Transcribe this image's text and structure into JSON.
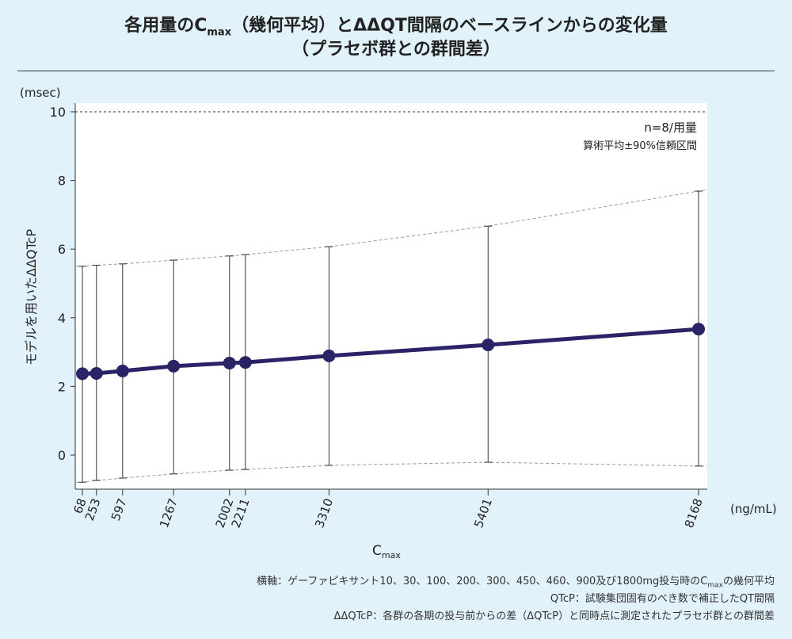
{
  "title": {
    "line1_pre": "各用量のC",
    "line1_sub": "max",
    "line1_post": "（幾何平均）とΔΔQT間隔のベースラインからの変化量",
    "line2": "（プラセボ群との群間差）"
  },
  "legend": {
    "n": "n=8/用量",
    "stat": "算術平均±90%信頼区間"
  },
  "footer": {
    "l1_pre": "横軸：ゲーファピキサント10、30、100、200、300、450、460、900及び1800mg投与時のC",
    "l1_sub": "max",
    "l1_post": "の幾何平均",
    "l2": "QTcP：試験集団固有のべき数で補正したQT間隔",
    "l3": "ΔΔQTcP：各群の各期の投与前からの差（ΔQTcP）と同時点に測定されたプラセボ群との群間差"
  },
  "chart_data": {
    "type": "line",
    "ylabel": "モデルを用いたΔΔQTcP",
    "yunit": "(msec)",
    "xlabel_pre": "C",
    "xlabel_sub": "max",
    "xunit": "(ng/mL)",
    "ylim": [
      -1,
      11.0
    ],
    "xlim": [
      -25,
      8280
    ],
    "yticks": [
      "0",
      "2",
      "4",
      "6",
      "8",
      "10"
    ],
    "reference_line": 10,
    "x": [
      68,
      253,
      597,
      1267,
      2002,
      2211,
      3310,
      5401,
      8168
    ],
    "xtick_labels": [
      "68",
      "253",
      "597",
      "1267",
      "2002",
      "2211",
      "3310",
      "5401",
      "8168"
    ],
    "mean": [
      2.37,
      2.38,
      2.45,
      2.59,
      2.68,
      2.7,
      2.89,
      3.21,
      3.67
    ],
    "upper": [
      5.5,
      5.53,
      5.57,
      5.68,
      5.8,
      5.84,
      6.07,
      6.67,
      7.69
    ],
    "lower": [
      -0.79,
      -0.74,
      -0.67,
      -0.55,
      -0.44,
      -0.42,
      -0.3,
      -0.21,
      -0.32
    ],
    "colors": {
      "line": "#2a2466",
      "ci": "#333333",
      "band": "#999999"
    }
  }
}
